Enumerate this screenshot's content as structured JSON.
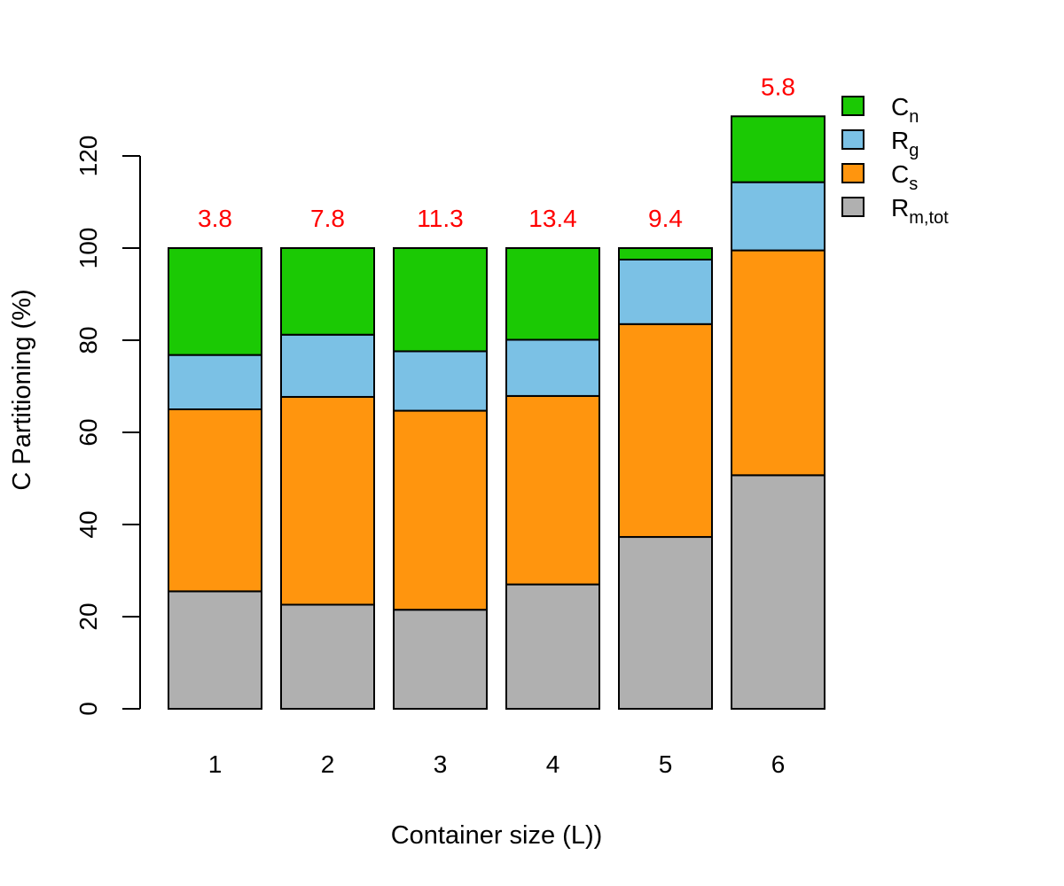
{
  "chart_data": {
    "type": "bar",
    "stacked": true,
    "xlabel": "Container size (L))",
    "ylabel": "C Partitioning (%)",
    "categories": [
      "1",
      "2",
      "3",
      "4",
      "5",
      "6"
    ],
    "ylim": [
      0,
      130
    ],
    "y_ticks": [
      0,
      20,
      40,
      60,
      80,
      100,
      120
    ],
    "top_labels": [
      "3.8",
      "7.8",
      "11.3",
      "13.4",
      "9.4",
      "5.8"
    ],
    "top_label_color": "#ff0000",
    "series": [
      {
        "name": "R",
        "subscript": "m,tot",
        "color": "#b0b0b0",
        "values": [
          25.5,
          22.6,
          21.5,
          27,
          37.3,
          50.7
        ]
      },
      {
        "name": "C",
        "subscript": "s",
        "color": "#ff950e",
        "values": [
          39.5,
          45.1,
          43.2,
          40.9,
          46.2,
          48.8
        ]
      },
      {
        "name": "R",
        "subscript": "g",
        "color": "#7bc1e5",
        "values": [
          11.8,
          13.5,
          12.9,
          12.2,
          14,
          14.8
        ]
      },
      {
        "name": "C",
        "subscript": "n",
        "color": "#1bc904",
        "values": [
          23.2,
          18.8,
          22.4,
          19.9,
          2.5,
          14.3
        ]
      }
    ],
    "legend_position": "top-right",
    "grid": false
  }
}
